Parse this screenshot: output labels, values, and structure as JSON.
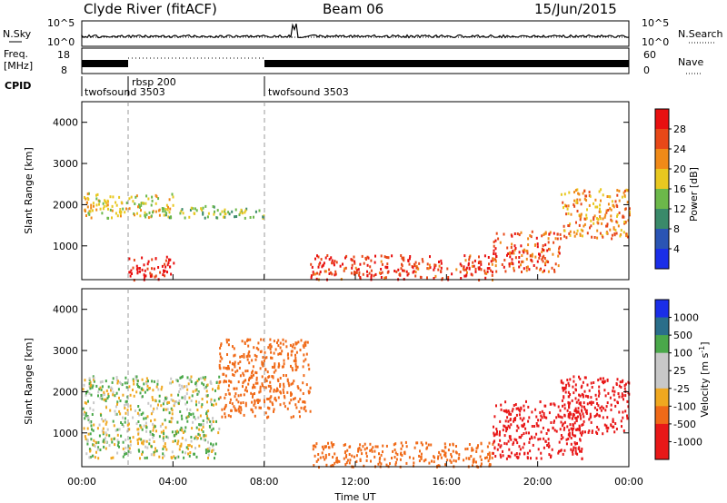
{
  "header": {
    "station": "Clyde River (fitACF)",
    "beam": "Beam 06",
    "date": "15/Jun/2015"
  },
  "status_panel": {
    "nsky_label": "N.Sky",
    "nsearch_label": "N.Search",
    "freq_label": "Freq.",
    "freq_unit": "[MHz]",
    "nave_label": "Nave",
    "cpid_label": "CPID",
    "left_ticks_noise": [
      "10^5",
      "10^0"
    ],
    "right_ticks_noise": [
      "10^5",
      "10^0"
    ],
    "left_ticks_freq": [
      "18",
      "8"
    ],
    "right_ticks_nave": [
      "60",
      "0"
    ],
    "cpid_segments": [
      {
        "name": "twofsound 3503",
        "start": "00:00"
      },
      {
        "name": "rbsp 200",
        "start": "02:00"
      },
      {
        "name": "twofsound 3503",
        "start": "08:00"
      }
    ]
  },
  "chart_data": [
    {
      "type": "heatmap",
      "quantity": "Power",
      "ylabel": "Slant Range [km]",
      "ylim": [
        180,
        4500
      ],
      "y_ticks": [
        "1000",
        "2000",
        "3000",
        "4000"
      ],
      "xlim": [
        "00:00",
        "24:00"
      ],
      "colorbar": {
        "label": "Power [dB]",
        "range": [
          0,
          32
        ],
        "ticks": [
          "4",
          "8",
          "12",
          "16",
          "20",
          "24",
          "28"
        ]
      },
      "scatter_regions": [
        {
          "t_start": 0.0,
          "t_end": 4.0,
          "range_min": 1700,
          "range_max": 2300,
          "value_db": 18
        },
        {
          "t_start": 3.5,
          "t_end": 8.0,
          "range_min": 1700,
          "range_max": 2000,
          "value_db": 14
        },
        {
          "t_start": 2.0,
          "t_end": 4.0,
          "range_min": 200,
          "range_max": 800,
          "value_db": 30
        },
        {
          "t_start": 10.0,
          "t_end": 18.0,
          "range_min": 200,
          "range_max": 800,
          "value_db": 28
        },
        {
          "t_start": 18.0,
          "t_end": 21.0,
          "range_min": 400,
          "range_max": 1400,
          "value_db": 26
        },
        {
          "t_start": 21.0,
          "t_end": 24.0,
          "range_min": 1200,
          "range_max": 2400,
          "value_db": 22
        }
      ]
    },
    {
      "type": "heatmap",
      "quantity": "Velocity",
      "ylabel": "Slant Range [km]",
      "ylim": [
        180,
        4500
      ],
      "y_ticks": [
        "1000",
        "2000",
        "3000",
        "4000"
      ],
      "xlim": [
        "00:00",
        "24:00"
      ],
      "xlabel": "Time UT",
      "x_ticks": [
        "00:00",
        "04:00",
        "08:00",
        "12:00",
        "16:00",
        "20:00",
        "00:00"
      ],
      "colorbar": {
        "label": "Velocity [m s-1]",
        "ticks": [
          "1000",
          "500",
          "100",
          "25",
          "-25",
          "-100",
          "-500",
          "-1000"
        ]
      },
      "scatter_regions": [
        {
          "t_start": 0.0,
          "t_end": 6.0,
          "range_min": 400,
          "range_max": 2400,
          "velocity": 0
        },
        {
          "t_start": 6.0,
          "t_end": 10.0,
          "range_min": 1400,
          "range_max": 3300,
          "velocity": -250
        },
        {
          "t_start": 10.0,
          "t_end": 18.0,
          "range_min": 200,
          "range_max": 800,
          "velocity": -250
        },
        {
          "t_start": 18.0,
          "t_end": 22.0,
          "range_min": 400,
          "range_max": 1800,
          "velocity": -700
        },
        {
          "t_start": 21.0,
          "t_end": 24.0,
          "range_min": 1000,
          "range_max": 2400,
          "velocity": -700
        }
      ]
    }
  ]
}
